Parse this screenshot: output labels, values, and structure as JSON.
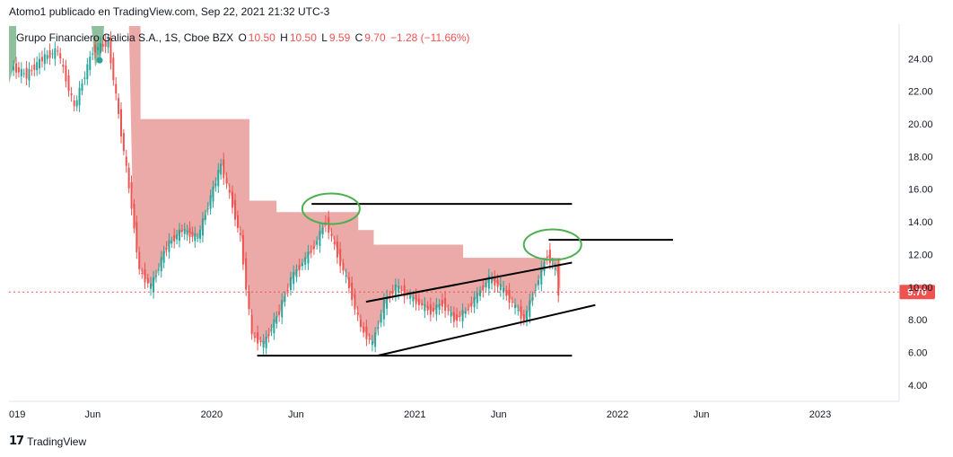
{
  "caption": "Atomo1 publicado en TradingView.com, Sep 22, 2021 21:32 UTC-3",
  "legend": {
    "symbol": "Grupo Financiero Galicia S.A., 1S, Cboe BZX",
    "open_label": "O",
    "open": "10.50",
    "high_label": "H",
    "high": "10.50",
    "low_label": "L",
    "low": "9.59",
    "close_label": "C",
    "close": "9.70",
    "change": "−1.28 (−11.66%)"
  },
  "footer": {
    "brand": "TradingView",
    "logo": "17"
  },
  "colors": {
    "up": "#26a69a",
    "down": "#ef5350",
    "cloud_bear": "#eba9a8",
    "cloud_bull": "#8fbf9c",
    "annotation_circle": "#4caf50",
    "annotation_line": "#000000",
    "price_line": "#ef5350"
  },
  "chart_data": {
    "type": "candlestick",
    "ylim": [
      3,
      26
    ],
    "y_ticks": [
      "4.00",
      "6.00",
      "8.00",
      "10.00",
      "12.00",
      "14.00",
      "16.00",
      "18.00",
      "20.00",
      "22.00",
      "24.00"
    ],
    "x_ticks": [
      "019",
      "Jun",
      "2020",
      "Jun",
      "2021",
      "Jun",
      "2022",
      "Jun",
      "2023"
    ],
    "x_tick_dates": [
      "2019-01-01",
      "2019-06-01",
      "2020-01-01",
      "2020-06-01",
      "2021-01-01",
      "2021-06-01",
      "2022-01-01",
      "2022-06-01",
      "2023-01-01"
    ],
    "last_price": 9.7,
    "last_price_label": "9.70",
    "closes": [
      {
        "date": "2019-01-07",
        "value": 23.5
      },
      {
        "date": "2019-02-04",
        "value": 23.0
      },
      {
        "date": "2019-03-04",
        "value": 24.0
      },
      {
        "date": "2019-04-01",
        "value": 24.5
      },
      {
        "date": "2019-05-01",
        "value": 21.0
      },
      {
        "date": "2019-05-15",
        "value": 22.5
      },
      {
        "date": "2019-06-03",
        "value": 24.5
      },
      {
        "date": "2019-07-01",
        "value": 25.0
      },
      {
        "date": "2019-08-12",
        "value": 15.0
      },
      {
        "date": "2019-08-26",
        "value": 11.0
      },
      {
        "date": "2019-09-16",
        "value": 10.0
      },
      {
        "date": "2019-10-14",
        "value": 12.5
      },
      {
        "date": "2019-11-11",
        "value": 13.5
      },
      {
        "date": "2019-12-09",
        "value": 13.0
      },
      {
        "date": "2020-01-06",
        "value": 16.0
      },
      {
        "date": "2020-01-20",
        "value": 17.5
      },
      {
        "date": "2020-02-10",
        "value": 15.0
      },
      {
        "date": "2020-02-24",
        "value": 13.0
      },
      {
        "date": "2020-03-16",
        "value": 7.0
      },
      {
        "date": "2020-04-06",
        "value": 6.5
      },
      {
        "date": "2020-05-04",
        "value": 8.5
      },
      {
        "date": "2020-05-25",
        "value": 10.5
      },
      {
        "date": "2020-06-15",
        "value": 11.5
      },
      {
        "date": "2020-07-06",
        "value": 12.5
      },
      {
        "date": "2020-07-27",
        "value": 14.0
      },
      {
        "date": "2020-08-17",
        "value": 12.0
      },
      {
        "date": "2020-09-07",
        "value": 10.0
      },
      {
        "date": "2020-09-28",
        "value": 7.5
      },
      {
        "date": "2020-10-19",
        "value": 6.5
      },
      {
        "date": "2020-11-09",
        "value": 9.0
      },
      {
        "date": "2020-11-30",
        "value": 10.0
      },
      {
        "date": "2020-12-21",
        "value": 9.5
      },
      {
        "date": "2021-01-11",
        "value": 9.0
      },
      {
        "date": "2021-02-01",
        "value": 8.5
      },
      {
        "date": "2021-02-22",
        "value": 9.0
      },
      {
        "date": "2021-03-15",
        "value": 8.0
      },
      {
        "date": "2021-04-05",
        "value": 8.5
      },
      {
        "date": "2021-04-26",
        "value": 9.5
      },
      {
        "date": "2021-05-17",
        "value": 10.5
      },
      {
        "date": "2021-06-07",
        "value": 10.0
      },
      {
        "date": "2021-06-28",
        "value": 9.0
      },
      {
        "date": "2021-07-19",
        "value": 8.0
      },
      {
        "date": "2021-08-09",
        "value": 10.0
      },
      {
        "date": "2021-08-30",
        "value": 12.0
      },
      {
        "date": "2021-09-13",
        "value": 10.98
      },
      {
        "date": "2021-09-20",
        "value": 9.7
      }
    ],
    "cloud": [
      {
        "date": "2019-08-05",
        "value": 26.0
      },
      {
        "date": "2019-08-26",
        "value": 20.3
      },
      {
        "date": "2020-02-24",
        "value": 20.3
      },
      {
        "date": "2020-03-09",
        "value": 15.3
      },
      {
        "date": "2020-04-27",
        "value": 14.6
      },
      {
        "date": "2020-08-17",
        "value": 14.6
      },
      {
        "date": "2020-09-21",
        "value": 13.5
      },
      {
        "date": "2020-10-19",
        "value": 12.6
      },
      {
        "date": "2021-03-01",
        "value": 12.6
      },
      {
        "date": "2021-03-29",
        "value": 11.8
      },
      {
        "date": "2021-09-20",
        "value": 11.8
      }
    ],
    "annotations": {
      "horizontal_lines": [
        {
          "from_date": "2020-06-29",
          "to_date": "2021-10-11",
          "value": 15.1
        },
        {
          "from_date": "2021-08-30",
          "to_date": "2022-04-11",
          "value": 12.9
        },
        {
          "from_date": "2020-03-23",
          "to_date": "2021-10-11",
          "value": 5.8
        }
      ],
      "trend_lines": [
        {
          "from_date": "2020-10-05",
          "from_value": 9.1,
          "to_date": "2021-10-11",
          "to_value": 11.5
        },
        {
          "from_date": "2020-10-26",
          "from_value": 5.8,
          "to_date": "2021-11-22",
          "to_value": 8.9
        }
      ],
      "circles": [
        {
          "date": "2020-08-03",
          "value": 14.8
        },
        {
          "date": "2021-09-06",
          "value": 12.6
        }
      ]
    }
  }
}
